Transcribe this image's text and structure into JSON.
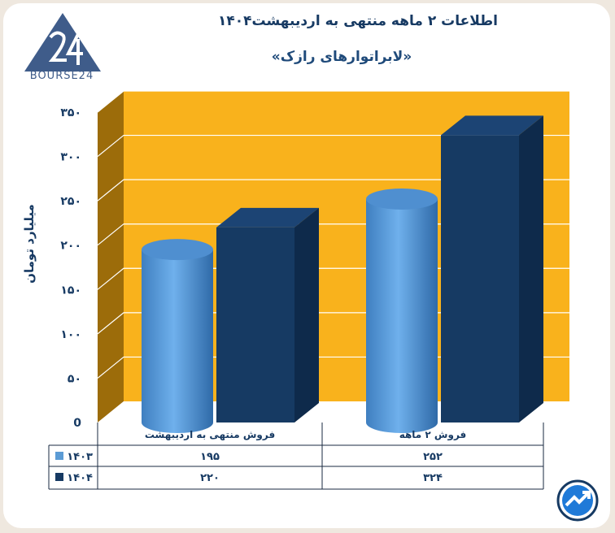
{
  "header": {
    "title": "اطلاعات ۲ ماهه منتهی به اردیبهشت۱۴۰۴",
    "subtitle": "«لابراتوارهای رازک»",
    "brand": "BOURSE24"
  },
  "chart_data": {
    "type": "bar",
    "ylabel": "میلیارد تومان",
    "ylim": [
      0,
      350
    ],
    "yticks": [
      {
        "value": 0,
        "label": "0"
      },
      {
        "value": 50,
        "label": "۵۰"
      },
      {
        "value": 100,
        "label": "۱۰۰"
      },
      {
        "value": 150,
        "label": "۱۵۰"
      },
      {
        "value": 200,
        "label": "۲۰۰"
      },
      {
        "value": 250,
        "label": "۲۵۰"
      },
      {
        "value": 300,
        "label": "۳۰۰"
      },
      {
        "value": 350,
        "label": "۳۵۰"
      }
    ],
    "grid": true,
    "categories": [
      "فروش منتهی به  اردیبهشت",
      "فروش ۲  ماهه"
    ],
    "series": [
      {
        "name": "۱۴۰۳",
        "color": "#5b9bd5",
        "shape": "cylinder",
        "values": [
          195,
          252
        ],
        "labels": [
          "۱۹۵",
          "۲۵۲"
        ]
      },
      {
        "name": "۱۴۰۴",
        "color": "#163a63",
        "shape": "box",
        "values": [
          220,
          324
        ],
        "labels": [
          "۲۲۰",
          "۳۲۴"
        ]
      }
    ],
    "colors": {
      "wall": "#f9b21c",
      "side_wall": "#9c6c0a",
      "floor": "#ffffff"
    }
  }
}
